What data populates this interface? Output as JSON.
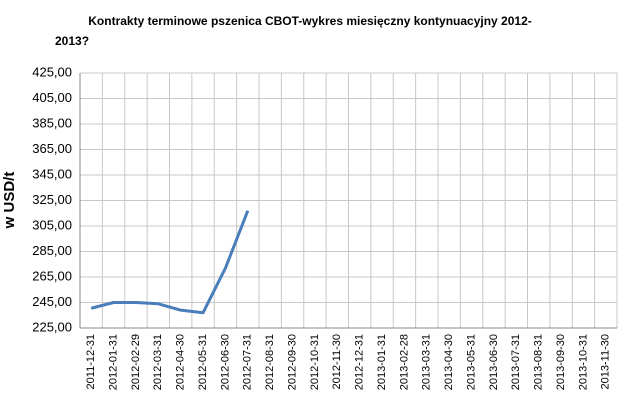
{
  "chart_data": {
    "type": "line",
    "title": "Kontrakty terminowe pszenica CBOT-wykres miesięczny kontynuacyjny 2012-",
    "subtitle": "2013?",
    "y_label": "w USD/t",
    "categories": [
      "2011-12-31",
      "2012-01-31",
      "2012-02-29",
      "2012-03-31",
      "2012-04-30",
      "2012-05-31",
      "2012-06-30",
      "2012-07-31",
      "2012-08-31",
      "2012-09-30",
      "2012-10-31",
      "2012-11-30",
      "2012-12-31",
      "2013-01-31",
      "2013-02-28",
      "2013-03-31",
      "2013-04-30",
      "2013-05-31",
      "2013-06-30",
      "2013-07-31",
      "2013-08-31",
      "2013-09-30",
      "2013-10-31",
      "2013-11-30"
    ],
    "series": [
      {
        "name": "CBOT",
        "color": "#4a7ebb",
        "values": [
          240.5,
          245,
          245,
          244,
          239,
          237,
          272,
          317,
          null,
          null,
          null,
          null,
          null,
          null,
          null,
          null,
          null,
          null,
          null,
          null,
          null,
          null,
          null,
          null
        ]
      }
    ],
    "ylim": [
      225,
      425
    ],
    "yticks": [
      {
        "value": 225,
        "label": "225,00"
      },
      {
        "value": 245,
        "label": "245,00"
      },
      {
        "value": 265,
        "label": "265,00"
      },
      {
        "value": 285,
        "label": "285,00"
      },
      {
        "value": 305,
        "label": "305,00"
      },
      {
        "value": 325,
        "label": "325,00"
      },
      {
        "value": 345,
        "label": "345,00"
      },
      {
        "value": 365,
        "label": "365,00"
      },
      {
        "value": 385,
        "label": "385,00"
      },
      {
        "value": 405,
        "label": "405,00"
      },
      {
        "value": 425,
        "label": "425,00"
      }
    ],
    "grid": true
  }
}
